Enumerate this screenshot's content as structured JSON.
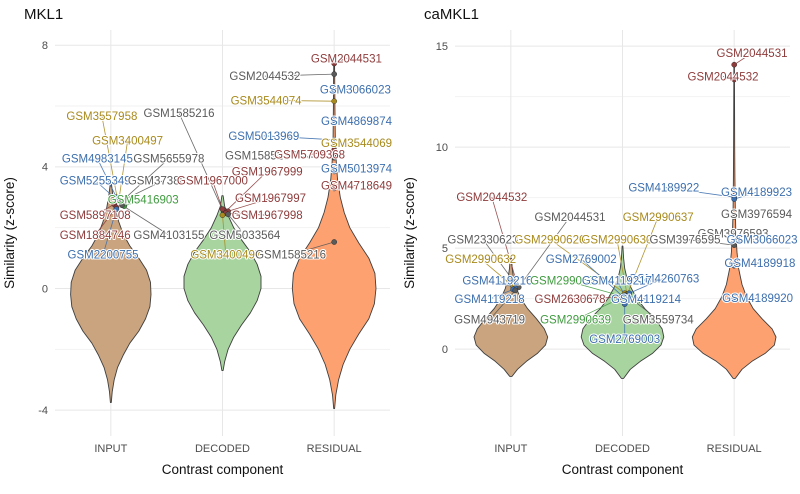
{
  "figure": {
    "background": "#ffffff"
  },
  "palette": {
    "red": "#8e3b3b",
    "blue": "#3d6fae",
    "olive": "#a98a1d",
    "gray": "#5a5a5a",
    "green": "#3f9b3f",
    "grid_major": "#e7e7e7",
    "grid_minor": "#f2f2f2",
    "tick_text": "#4d4d4d",
    "axis_text": "#111111",
    "violin_stroke": "#3f3f3f"
  },
  "chart_data": [
    {
      "type": "violin",
      "title": "MKL1",
      "xlabel": "Contrast component",
      "ylabel": "Similarity (z-score)",
      "categories": [
        "INPUT",
        "DECODED",
        "RESIDUAL"
      ],
      "ylim": [
        -4.85,
        8.5
      ],
      "yticks": [
        -4,
        0,
        4,
        8
      ],
      "grid": true,
      "legend": "none",
      "violins": [
        {
          "category": "INPUT",
          "fill": "#c9a47f",
          "profile": [
            [
              3.45,
              0.005
            ],
            [
              3.0,
              0.02
            ],
            [
              2.6,
              0.04
            ],
            [
              2.2,
              0.07
            ],
            [
              1.8,
              0.11
            ],
            [
              1.4,
              0.17
            ],
            [
              1.0,
              0.25
            ],
            [
              0.6,
              0.32
            ],
            [
              0.2,
              0.355
            ],
            [
              -0.2,
              0.36
            ],
            [
              -0.6,
              0.35
            ],
            [
              -1.0,
              0.31
            ],
            [
              -1.4,
              0.25
            ],
            [
              -1.8,
              0.17
            ],
            [
              -2.2,
              0.11
            ],
            [
              -2.6,
              0.06
            ],
            [
              -3.0,
              0.03
            ],
            [
              -3.4,
              0.012
            ],
            [
              -3.75,
              0.004
            ]
          ]
        },
        {
          "category": "DECODED",
          "fill": "#a7d49f",
          "profile": [
            [
              3.05,
              0.005
            ],
            [
              2.7,
              0.02
            ],
            [
              2.4,
              0.05
            ],
            [
              2.0,
              0.1
            ],
            [
              1.6,
              0.17
            ],
            [
              1.2,
              0.25
            ],
            [
              0.8,
              0.31
            ],
            [
              0.4,
              0.345
            ],
            [
              0.0,
              0.345
            ],
            [
              -0.4,
              0.31
            ],
            [
              -0.8,
              0.25
            ],
            [
              -1.2,
              0.17
            ],
            [
              -1.6,
              0.1
            ],
            [
              -2.0,
              0.05
            ],
            [
              -2.4,
              0.02
            ],
            [
              -2.7,
              0.005
            ]
          ]
        },
        {
          "category": "RESIDUAL",
          "fill": "#fda171",
          "profile": [
            [
              7.5,
              0.003
            ],
            [
              7.0,
              0.005
            ],
            [
              6.0,
              0.007
            ],
            [
              5.0,
              0.01
            ],
            [
              4.2,
              0.018
            ],
            [
              3.6,
              0.03
            ],
            [
              3.0,
              0.055
            ],
            [
              2.5,
              0.09
            ],
            [
              2.0,
              0.14
            ],
            [
              1.5,
              0.22
            ],
            [
              1.0,
              0.31
            ],
            [
              0.5,
              0.365
            ],
            [
              0.0,
              0.375
            ],
            [
              -0.5,
              0.36
            ],
            [
              -1.0,
              0.31
            ],
            [
              -1.5,
              0.22
            ],
            [
              -2.0,
              0.14
            ],
            [
              -2.5,
              0.08
            ],
            [
              -3.0,
              0.04
            ],
            [
              -3.5,
              0.015
            ],
            [
              -3.95,
              0.004
            ]
          ]
        }
      ],
      "annotations": [
        {
          "t": "GSM2044531",
          "c": "red",
          "lx": 3.11,
          "ly": 7.57,
          "px": 3.0,
          "py": 7.4
        },
        {
          "t": "GSM2044532",
          "c": "gray",
          "lx": 2.38,
          "ly": 6.98,
          "px": 3.0,
          "py": 7.05
        },
        {
          "t": "GSM3066023",
          "c": "blue",
          "lx": 3.19,
          "ly": 6.55,
          "px": 3.0,
          "py": 6.52
        },
        {
          "t": "GSM3544074",
          "c": "olive",
          "lx": 2.39,
          "ly": 6.19,
          "px": 3.0,
          "py": 6.16
        },
        {
          "t": "GSM4869874",
          "c": "blue",
          "lx": 3.2,
          "ly": 5.51,
          "px": 3.0,
          "py": 5.45
        },
        {
          "t": "GSM3557958",
          "c": "olive",
          "lx": 0.92,
          "ly": 5.67,
          "px": 1.06,
          "py": 2.93
        },
        {
          "t": "GSM1585216",
          "c": "gray",
          "lx": 1.61,
          "ly": 5.77,
          "px": 2.01,
          "py": 2.51
        },
        {
          "t": "GSM3400497",
          "c": "olive",
          "lx": 1.15,
          "ly": 4.86,
          "px": 1.07,
          "py": 2.87
        },
        {
          "t": "GSM5013969",
          "c": "blue",
          "lx": 2.37,
          "ly": 5.02,
          "px": 3.0,
          "py": 4.89
        },
        {
          "t": "GSM1585237",
          "c": "gray",
          "lx": 2.34,
          "ly": 4.37,
          "px": 3.0,
          "py": 4.3
        },
        {
          "t": "GSM5709368",
          "c": "red",
          "lx": 2.78,
          "ly": 4.4,
          "px": 3.0,
          "py": 4.56
        },
        {
          "t": "GSM3544069",
          "c": "olive",
          "lx": 3.2,
          "ly": 4.79,
          "px": 3.0,
          "py": 4.7
        },
        {
          "t": "GSM4983145",
          "c": "blue",
          "lx": 0.88,
          "ly": 4.27,
          "px": 1.05,
          "py": 3.0
        },
        {
          "t": "GSM5655978",
          "c": "gray",
          "lx": 1.52,
          "ly": 4.27,
          "px": 1.09,
          "py": 2.84
        },
        {
          "t": "GSM1967999",
          "c": "red",
          "lx": 2.4,
          "ly": 3.85,
          "px": 2.03,
          "py": 2.54
        },
        {
          "t": "GSM5013974",
          "c": "blue",
          "lx": 3.2,
          "ly": 3.95,
          "px": 3.0,
          "py": 3.85
        },
        {
          "t": "GSM5255349",
          "c": "blue",
          "lx": 0.86,
          "ly": 3.55,
          "px": 1.05,
          "py": 2.93
        },
        {
          "t": "GSM3738854",
          "c": "gray",
          "lx": 1.47,
          "ly": 3.55,
          "px": 1.09,
          "py": 2.87
        },
        {
          "t": "GSM1967000",
          "c": "red",
          "lx": 1.91,
          "ly": 3.55,
          "px": 2.0,
          "py": 2.61
        },
        {
          "t": "GSM4718649",
          "c": "red",
          "lx": 3.2,
          "ly": 3.39,
          "px": 3.0,
          "py": 3.29
        },
        {
          "t": "GSM5416903",
          "c": "green",
          "lx": 1.29,
          "ly": 2.93,
          "px": 1.12,
          "py": 2.71
        },
        {
          "t": "GSM1967997",
          "c": "red",
          "lx": 2.43,
          "ly": 2.97,
          "px": 2.05,
          "py": 2.54
        },
        {
          "t": "GSM5897108",
          "c": "red",
          "lx": 0.86,
          "ly": 2.41,
          "px": 1.03,
          "py": 2.77
        },
        {
          "t": "GSM1967998",
          "c": "red",
          "lx": 2.4,
          "ly": 2.41,
          "px": 2.03,
          "py": 2.48
        },
        {
          "t": "GSM1884746",
          "c": "red",
          "lx": 0.86,
          "ly": 1.76,
          "px": 1.05,
          "py": 2.67
        },
        {
          "t": "GSM4103155",
          "c": "gray",
          "lx": 1.52,
          "ly": 1.76,
          "px": 1.1,
          "py": 2.74
        },
        {
          "t": "GSM5033564",
          "c": "gray",
          "lx": 2.2,
          "ly": 1.76,
          "px": 2.05,
          "py": 2.44
        },
        {
          "t": "GSM2200755",
          "c": "blue",
          "lx": 0.93,
          "ly": 1.11,
          "px": 1.05,
          "py": 2.61
        },
        {
          "t": "GSM3400497",
          "c": "olive",
          "lx": 2.03,
          "ly": 1.11,
          "px": 2.0,
          "py": 2.41
        },
        {
          "t": "GSM1585216",
          "c": "gray",
          "lx": 2.61,
          "ly": 1.11,
          "px": 3.0,
          "py": 1.53
        }
      ]
    },
    {
      "type": "violin",
      "title": "caMKL1",
      "xlabel": "Contrast component",
      "ylabel": "Similarity (z-score)",
      "categories": [
        "INPUT",
        "DECODED",
        "RESIDUAL"
      ],
      "ylim": [
        -4.3,
        15.8
      ],
      "yticks": [
        0,
        5,
        10,
        15
      ],
      "grid": true,
      "legend": "none",
      "violins": [
        {
          "category": "INPUT",
          "fill": "#c9a47f",
          "profile": [
            [
              4.6,
              0.005
            ],
            [
              4.0,
              0.012
            ],
            [
              3.5,
              0.025
            ],
            [
              3.0,
              0.05
            ],
            [
              2.5,
              0.09
            ],
            [
              2.0,
              0.15
            ],
            [
              1.5,
              0.23
            ],
            [
              1.0,
              0.3
            ],
            [
              0.6,
              0.33
            ],
            [
              0.2,
              0.31
            ],
            [
              -0.2,
              0.24
            ],
            [
              -0.6,
              0.14
            ],
            [
              -1.0,
              0.06
            ],
            [
              -1.35,
              0.01
            ]
          ]
        },
        {
          "category": "DECODED",
          "fill": "#a7d49f",
          "profile": [
            [
              5.1,
              0.004
            ],
            [
              4.5,
              0.01
            ],
            [
              4.0,
              0.02
            ],
            [
              3.5,
              0.04
            ],
            [
              3.0,
              0.08
            ],
            [
              2.5,
              0.13
            ],
            [
              2.0,
              0.2
            ],
            [
              1.5,
              0.29
            ],
            [
              1.0,
              0.355
            ],
            [
              0.6,
              0.37
            ],
            [
              0.2,
              0.345
            ],
            [
              -0.2,
              0.27
            ],
            [
              -0.6,
              0.16
            ],
            [
              -1.0,
              0.07
            ],
            [
              -1.45,
              0.01
            ]
          ]
        },
        {
          "category": "RESIDUAL",
          "fill": "#fda171",
          "profile": [
            [
              14.2,
              0.002
            ],
            [
              13.0,
              0.003
            ],
            [
              11.5,
              0.004
            ],
            [
              10.0,
              0.005
            ],
            [
              8.5,
              0.007
            ],
            [
              7.0,
              0.01
            ],
            [
              5.8,
              0.015
            ],
            [
              4.8,
              0.025
            ],
            [
              4.0,
              0.04
            ],
            [
              3.2,
              0.07
            ],
            [
              2.6,
              0.11
            ],
            [
              2.0,
              0.17
            ],
            [
              1.5,
              0.25
            ],
            [
              1.0,
              0.34
            ],
            [
              0.6,
              0.375
            ],
            [
              0.2,
              0.36
            ],
            [
              -0.2,
              0.28
            ],
            [
              -0.6,
              0.16
            ],
            [
              -1.0,
              0.07
            ],
            [
              -1.45,
              0.01
            ]
          ]
        }
      ],
      "annotations": [
        {
          "t": "GSM2044531",
          "c": "red",
          "lx": 3.16,
          "ly": 14.66,
          "px": 3.0,
          "py": 14.08
        },
        {
          "t": "GSM2044532",
          "c": "red",
          "lx": 2.9,
          "ly": 13.5,
          "px": 3.0,
          "py": 13.35
        },
        {
          "t": "GSM4189922",
          "c": "blue",
          "lx": 2.37,
          "ly": 8.01,
          "px": 3.0,
          "py": 7.52
        },
        {
          "t": "GSM4189923",
          "c": "blue",
          "lx": 3.2,
          "ly": 7.77,
          "px": 3.0,
          "py": 7.43
        },
        {
          "t": "GSM3976594",
          "c": "gray",
          "lx": 3.2,
          "ly": 6.7,
          "px": 3.0,
          "py": 6.55
        },
        {
          "t": "GSM2044532",
          "c": "red",
          "lx": 0.83,
          "ly": 7.52,
          "px": 1.06,
          "py": 3.16
        },
        {
          "t": "GSM2044531",
          "c": "gray",
          "lx": 1.53,
          "ly": 6.55,
          "px": 1.07,
          "py": 3.06
        },
        {
          "t": "GSM2990637",
          "c": "olive",
          "lx": 2.32,
          "ly": 6.55,
          "px": 2.04,
          "py": 2.67
        },
        {
          "t": "GSM3976593",
          "c": "gray",
          "lx": 2.99,
          "ly": 5.73,
          "px": 3.0,
          "py": 5.58
        },
        {
          "t": "GSM3066023",
          "c": "blue",
          "lx": 3.25,
          "ly": 5.44,
          "px": 3.0,
          "py": 5.34
        },
        {
          "t": "GSM2330623",
          "c": "gray",
          "lx": 0.75,
          "ly": 5.44,
          "px": 1.04,
          "py": 3.25
        },
        {
          "t": "GSM2990626",
          "c": "olive",
          "lx": 1.35,
          "ly": 5.44,
          "px": 2.02,
          "py": 2.77
        },
        {
          "t": "GSM2990630",
          "c": "olive",
          "lx": 1.95,
          "ly": 5.44,
          "px": 2.04,
          "py": 2.72
        },
        {
          "t": "GSM3976595",
          "c": "gray",
          "lx": 2.56,
          "ly": 5.44,
          "px": 3.0,
          "py": 5.15
        },
        {
          "t": "GSM2990632",
          "c": "olive",
          "lx": 0.73,
          "ly": 4.47,
          "px": 1.02,
          "py": 3.11
        },
        {
          "t": "GSM2769002",
          "c": "blue",
          "lx": 1.63,
          "ly": 4.47,
          "px": 2.0,
          "py": 2.62
        },
        {
          "t": "GSM4189918",
          "c": "blue",
          "lx": 3.23,
          "ly": 4.27,
          "px": 3.0,
          "py": 4.13
        },
        {
          "t": "GSM4260763",
          "c": "blue",
          "lx": 2.37,
          "ly": 3.5,
          "px": 2.06,
          "py": 2.77
        },
        {
          "t": "GSM4119216",
          "c": "blue",
          "lx": 0.88,
          "ly": 3.4,
          "px": 1.04,
          "py": 3.01
        },
        {
          "t": "GSM2990639",
          "c": "green",
          "lx": 1.49,
          "ly": 3.4,
          "px": 2.0,
          "py": 2.62
        },
        {
          "t": "GSM4119217",
          "c": "blue",
          "lx": 1.95,
          "ly": 3.4,
          "px": 2.02,
          "py": 2.67
        },
        {
          "t": "GSM4119218",
          "c": "blue",
          "lx": 0.81,
          "ly": 2.48,
          "px": 1.02,
          "py": 2.96
        },
        {
          "t": "GSM2630678",
          "c": "red",
          "lx": 1.53,
          "ly": 2.48,
          "px": 1.99,
          "py": 2.57
        },
        {
          "t": "GSM4119214",
          "c": "blue",
          "lx": 2.21,
          "ly": 2.48,
          "px": 2.04,
          "py": 2.62
        },
        {
          "t": "GSM4189920",
          "c": "blue",
          "lx": 3.21,
          "ly": 2.52,
          "px": 3.0,
          "py": 2.43
        },
        {
          "t": "GSM4943719",
          "c": "gray",
          "lx": 0.81,
          "ly": 1.46,
          "px": 1.04,
          "py": 2.91
        },
        {
          "t": "GSM2990639",
          "c": "green",
          "lx": 1.58,
          "ly": 1.46,
          "px": 2.0,
          "py": 2.57
        },
        {
          "t": "GSM3559734",
          "c": "gray",
          "lx": 2.32,
          "ly": 1.46,
          "px": 2.06,
          "py": 2.57
        },
        {
          "t": "GSM2769003",
          "c": "blue",
          "lx": 2.02,
          "ly": 0.49,
          "px": 2.02,
          "py": 2.23
        }
      ]
    }
  ]
}
